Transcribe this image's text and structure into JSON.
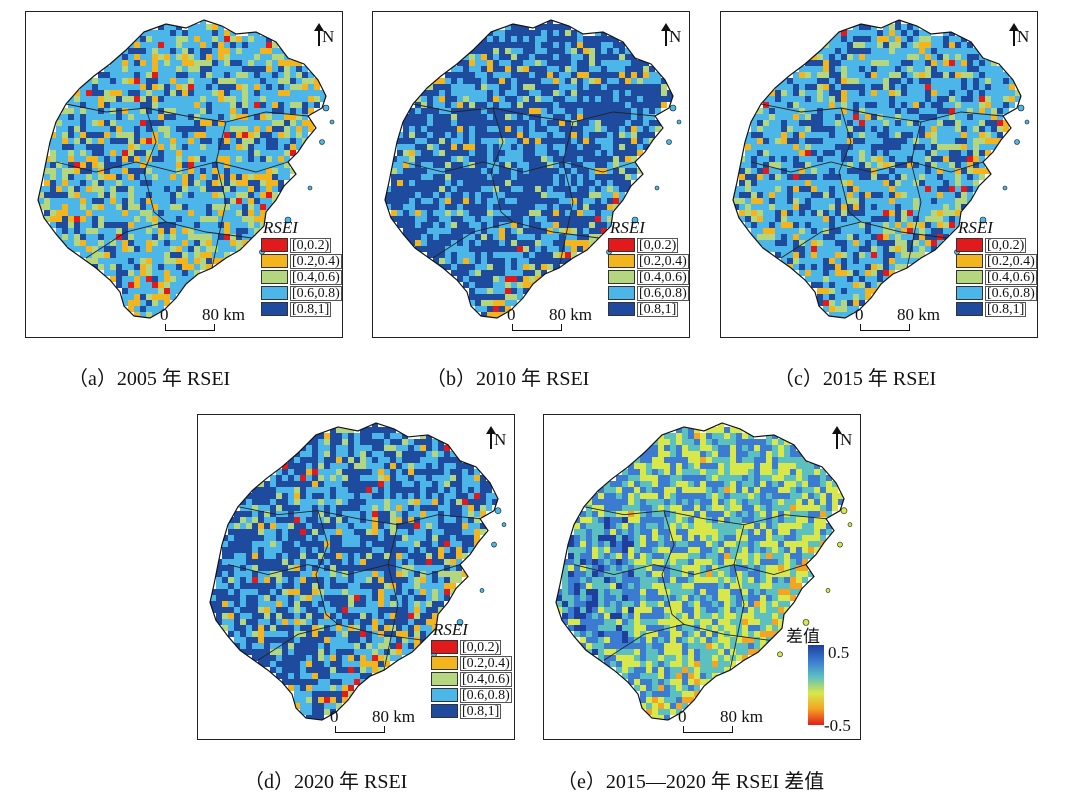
{
  "north_label": "N",
  "scale_bar": {
    "zero": "0",
    "distance": "80 km"
  },
  "legend": {
    "title": "RSEI",
    "classes": [
      {
        "label": "[0,0.2)",
        "color": "#e31a1c"
      },
      {
        "label": "[0.2,0.4)",
        "color": "#f2b51e"
      },
      {
        "label": "[0.4,0.6)",
        "color": "#b3d67f"
      },
      {
        "label": "[0.6,0.8)",
        "color": "#4db6e8"
      },
      {
        "label": "[0.8,1]",
        "color": "#1f4b9f"
      }
    ]
  },
  "diff_legend": {
    "title": "差值",
    "max": "0.5",
    "min": "-0.5",
    "colors": [
      "#1e3f9e",
      "#3b7bd1",
      "#5cc0c0",
      "#d8e84a",
      "#f5a321",
      "#e11d1d"
    ]
  },
  "panels": [
    {
      "caption": "（a）2005 年 RSEI",
      "type": "class",
      "mix": [
        0.02,
        0.12,
        0.16,
        0.52,
        0.18
      ]
    },
    {
      "caption": "（b）2010 年 RSEI",
      "type": "class",
      "mix": [
        0.0,
        0.04,
        0.06,
        0.3,
        0.6
      ]
    },
    {
      "caption": "（c）2015 年 RSEI",
      "type": "class",
      "mix": [
        0.01,
        0.08,
        0.12,
        0.52,
        0.27
      ]
    },
    {
      "caption": "（d）2020 年 RSEI",
      "type": "class",
      "mix": [
        0.01,
        0.06,
        0.08,
        0.35,
        0.5
      ]
    },
    {
      "caption": "（e）2015—2020 年 RSEI 差值",
      "type": "diff"
    }
  ]
}
